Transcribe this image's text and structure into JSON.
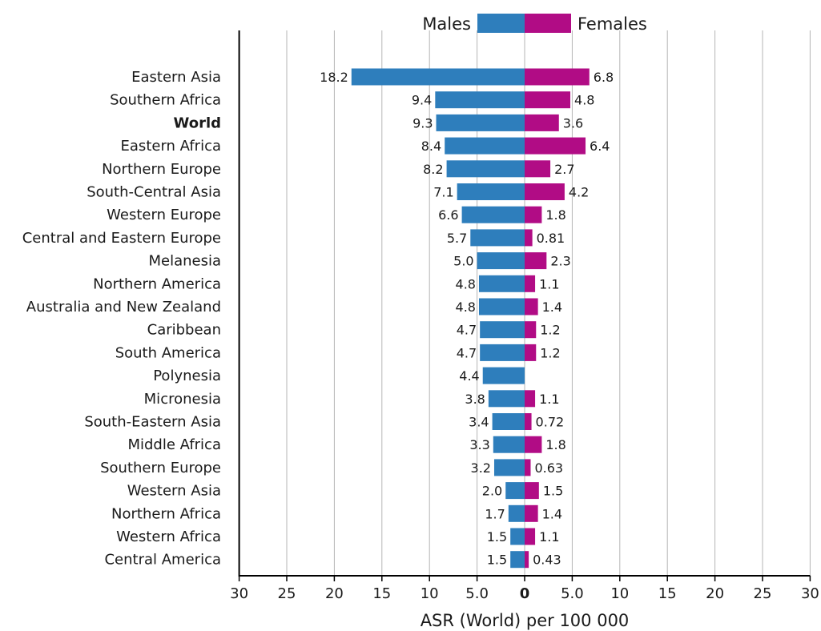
{
  "chart_data": {
    "type": "bar",
    "orientation": "horizontal",
    "layout": "population-pyramid",
    "xlabel": "ASR (World) per 100 000",
    "xlim": [
      -30,
      30
    ],
    "x_ticks": [
      "30",
      "25",
      "20",
      "15",
      "10",
      "5.0",
      "0",
      "5.0",
      "10",
      "15",
      "20",
      "25",
      "30"
    ],
    "grid": true,
    "legend_position": "top",
    "categories": [
      "Eastern Asia",
      "Southern Africa",
      "World",
      "Eastern Africa",
      "Northern Europe",
      "South-Central Asia",
      "Western Europe",
      "Central and Eastern Europe",
      "Melanesia",
      "Northern America",
      "Australia and New Zealand",
      "Caribbean",
      "South America",
      "Polynesia",
      "Micronesia",
      "South-Eastern Asia",
      "Middle Africa",
      "Southern Europe",
      "Western Asia",
      "Northern Africa",
      "Western Africa",
      "Central America"
    ],
    "bold_categories": [
      "World"
    ],
    "series": [
      {
        "name": "Males",
        "side": "left",
        "color": "#2e7ebc",
        "values": [
          18.2,
          9.4,
          9.3,
          8.4,
          8.2,
          7.1,
          6.6,
          5.7,
          5.0,
          4.8,
          4.8,
          4.7,
          4.7,
          4.4,
          3.8,
          3.4,
          3.3,
          3.2,
          2.0,
          1.7,
          1.5,
          1.5
        ],
        "value_labels": [
          "18.2",
          "9.4",
          "9.3",
          "8.4",
          "8.2",
          "7.1",
          "6.6",
          "5.7",
          "5.0",
          "4.8",
          "4.8",
          "4.7",
          "4.7",
          "4.4",
          "3.8",
          "3.4",
          "3.3",
          "3.2",
          "2.0",
          "1.7",
          "1.5",
          "1.5"
        ]
      },
      {
        "name": "Females",
        "side": "right",
        "color": "#b10c85",
        "values": [
          6.8,
          4.8,
          3.6,
          6.4,
          2.7,
          4.2,
          1.8,
          0.81,
          2.3,
          1.1,
          1.4,
          1.2,
          1.2,
          null,
          1.1,
          0.72,
          1.8,
          0.63,
          1.5,
          1.4,
          1.1,
          0.43
        ],
        "value_labels": [
          "6.8",
          "4.8",
          "3.6",
          "6.4",
          "2.7",
          "4.2",
          "1.8",
          "0.81",
          "2.3",
          "1.1",
          "1.4",
          "1.2",
          "1.2",
          null,
          "1.1",
          "0.72",
          "1.8",
          "0.63",
          "1.5",
          "1.4",
          "1.1",
          "0.43"
        ]
      }
    ]
  }
}
